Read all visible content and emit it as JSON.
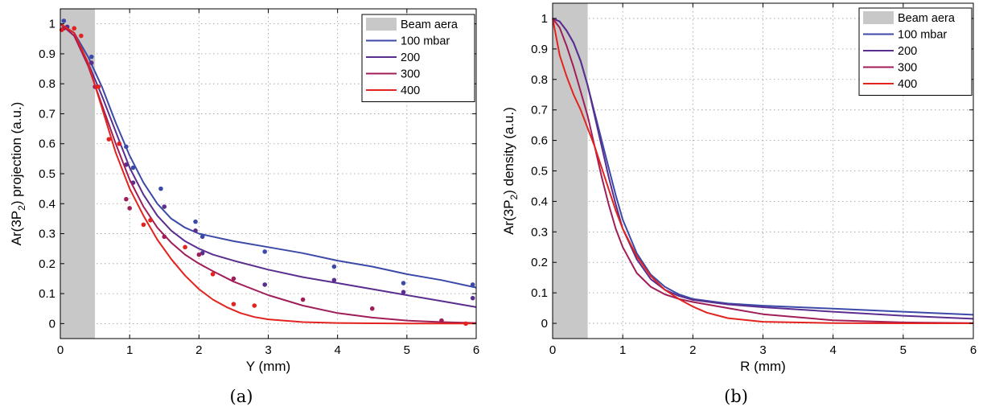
{
  "chart_data": [
    {
      "type": "line",
      "panel": "(a)",
      "xlabel": "Y (mm)",
      "ylabel_parts": {
        "pre": "Ar(3P",
        "sub": "2",
        "post": ") projection (a.u.)"
      },
      "xlim": [
        0,
        6
      ],
      "ylim": [
        -0.05,
        1.05
      ],
      "xticks": [
        0,
        1,
        2,
        3,
        4,
        5,
        6
      ],
      "yticks": [
        0,
        0.1,
        0.2,
        0.3,
        0.4,
        0.5,
        0.6,
        0.7,
        0.8,
        0.9,
        1
      ],
      "grid": true,
      "legend_position": "top-right",
      "beam_area": {
        "label": "Beam aera",
        "x_range": [
          0,
          0.5
        ],
        "color": "#c8c8c8"
      },
      "series": [
        {
          "name": "100 mbar",
          "color": "#3b4aa8",
          "x": [
            0,
            0.2,
            0.4,
            0.6,
            0.8,
            1.0,
            1.2,
            1.4,
            1.6,
            1.8,
            2.0,
            2.2,
            2.5,
            3.0,
            3.5,
            4.0,
            4.5,
            5.0,
            5.5,
            6.0
          ],
          "y": [
            1.0,
            0.97,
            0.89,
            0.79,
            0.67,
            0.56,
            0.47,
            0.4,
            0.35,
            0.32,
            0.3,
            0.29,
            0.275,
            0.255,
            0.235,
            0.21,
            0.19,
            0.165,
            0.145,
            0.12
          ],
          "points": {
            "x": [
              0.05,
              0.45,
              0.95,
              1.05,
              1.45,
              1.95,
              2.05,
              2.95,
              3.95,
              4.95,
              5.95
            ],
            "y": [
              1.01,
              0.89,
              0.59,
              0.52,
              0.45,
              0.34,
              0.29,
              0.24,
              0.19,
              0.135,
              0.13
            ]
          }
        },
        {
          "name": "200",
          "color": "#5a2e8e",
          "x": [
            0,
            0.2,
            0.4,
            0.6,
            0.8,
            1.0,
            1.2,
            1.4,
            1.6,
            1.8,
            2.0,
            2.2,
            2.5,
            3.0,
            3.5,
            4.0,
            4.5,
            5.0,
            5.5,
            6.0
          ],
          "y": [
            1.0,
            0.96,
            0.87,
            0.76,
            0.64,
            0.52,
            0.43,
            0.36,
            0.31,
            0.275,
            0.25,
            0.23,
            0.21,
            0.18,
            0.155,
            0.135,
            0.115,
            0.095,
            0.075,
            0.055
          ],
          "points": {
            "x": [
              0.1,
              0.45,
              0.95,
              1.05,
              1.5,
              1.95,
              2.05,
              2.95,
              3.95,
              4.95,
              5.95
            ],
            "y": [
              0.99,
              0.87,
              0.53,
              0.47,
              0.39,
              0.31,
              0.235,
              0.13,
              0.145,
              0.105,
              0.085
            ]
          }
        },
        {
          "name": "300",
          "color": "#a01e58",
          "x": [
            0,
            0.2,
            0.4,
            0.6,
            0.8,
            1.0,
            1.2,
            1.4,
            1.6,
            1.8,
            2.0,
            2.2,
            2.5,
            3.0,
            3.5,
            4.0,
            4.5,
            5.0,
            5.5,
            6.0
          ],
          "y": [
            1.0,
            0.96,
            0.86,
            0.73,
            0.6,
            0.48,
            0.39,
            0.32,
            0.27,
            0.23,
            0.2,
            0.175,
            0.14,
            0.095,
            0.06,
            0.035,
            0.02,
            0.01,
            0.005,
            0.002
          ],
          "points": {
            "x": [
              0.05,
              0.5,
              0.95,
              1.0,
              1.5,
              2.0,
              2.5,
              3.5,
              4.5,
              5.5
            ],
            "y": [
              0.985,
              0.79,
              0.415,
              0.385,
              0.29,
              0.23,
              0.15,
              0.08,
              0.05,
              0.01
            ]
          }
        },
        {
          "name": "400",
          "color": "#e2231f",
          "x": [
            0,
            0.2,
            0.4,
            0.6,
            0.8,
            1.0,
            1.2,
            1.4,
            1.6,
            1.8,
            2.0,
            2.2,
            2.4,
            2.6,
            2.8,
            3.0,
            3.5,
            4.0,
            4.5,
            5.0,
            5.5,
            6.0
          ],
          "y": [
            1.0,
            0.97,
            0.87,
            0.72,
            0.57,
            0.45,
            0.36,
            0.28,
            0.215,
            0.16,
            0.115,
            0.08,
            0.055,
            0.035,
            0.022,
            0.014,
            0.005,
            0.002,
            0.001,
            0.0005,
            0.0002,
            0.0001
          ],
          "points": {
            "x": [
              0.02,
              0.2,
              0.3,
              0.55,
              0.7,
              0.85,
              1.2,
              1.3,
              1.8,
              2.2,
              2.5,
              2.8,
              5.85
            ],
            "y": [
              0.98,
              0.985,
              0.96,
              0.79,
              0.615,
              0.6,
              0.33,
              0.345,
              0.255,
              0.165,
              0.065,
              0.06,
              0.0
            ]
          }
        }
      ]
    },
    {
      "type": "line",
      "panel": "(b)",
      "xlabel": "R (mm)",
      "ylabel_parts": {
        "pre": "Ar(3P",
        "sub": "2",
        "post": ") density (a.u.)"
      },
      "xlim": [
        0,
        6
      ],
      "ylim": [
        -0.05,
        1.05
      ],
      "xticks": [
        0,
        1,
        2,
        3,
        4,
        5,
        6
      ],
      "yticks": [
        0,
        0.1,
        0.2,
        0.3,
        0.4,
        0.5,
        0.6,
        0.7,
        0.8,
        0.9,
        1
      ],
      "grid": true,
      "legend_position": "top-right",
      "beam_area": {
        "label": "Beam aera",
        "x_range": [
          0,
          0.5
        ],
        "color": "#c8c8c8"
      },
      "series": [
        {
          "name": "100 mbar",
          "color": "#3b4aa8",
          "x": [
            0,
            0.1,
            0.2,
            0.3,
            0.4,
            0.5,
            0.6,
            0.7,
            0.8,
            0.9,
            1.0,
            1.2,
            1.4,
            1.6,
            1.8,
            2.0,
            2.5,
            3.0,
            4.0,
            5.0,
            6.0
          ],
          "y": [
            1.0,
            0.99,
            0.96,
            0.92,
            0.86,
            0.78,
            0.69,
            0.6,
            0.51,
            0.42,
            0.34,
            0.23,
            0.16,
            0.12,
            0.095,
            0.08,
            0.065,
            0.058,
            0.048,
            0.038,
            0.028
          ]
        },
        {
          "name": "200",
          "color": "#5a2e8e",
          "x": [
            0,
            0.1,
            0.2,
            0.3,
            0.4,
            0.5,
            0.6,
            0.7,
            0.8,
            0.9,
            1.0,
            1.2,
            1.4,
            1.6,
            1.8,
            2.0,
            2.5,
            3.0,
            4.0,
            5.0,
            6.0
          ],
          "y": [
            1.0,
            0.99,
            0.96,
            0.92,
            0.86,
            0.78,
            0.68,
            0.58,
            0.48,
            0.39,
            0.31,
            0.21,
            0.145,
            0.11,
            0.09,
            0.077,
            0.062,
            0.053,
            0.038,
            0.025,
            0.015
          ]
        },
        {
          "name": "300",
          "color": "#a01e58",
          "x": [
            0,
            0.1,
            0.2,
            0.3,
            0.4,
            0.5,
            0.6,
            0.7,
            0.8,
            0.9,
            1.0,
            1.2,
            1.4,
            1.6,
            1.8,
            2.0,
            2.5,
            3.0,
            4.0,
            5.0,
            6.0
          ],
          "y": [
            1.0,
            0.97,
            0.91,
            0.84,
            0.76,
            0.68,
            0.58,
            0.48,
            0.39,
            0.31,
            0.25,
            0.165,
            0.12,
            0.095,
            0.08,
            0.07,
            0.05,
            0.03,
            0.01,
            0.003,
            0.001
          ]
        },
        {
          "name": "400",
          "color": "#e2231f",
          "x": [
            0,
            0.05,
            0.1,
            0.2,
            0.3,
            0.4,
            0.5,
            0.6,
            0.7,
            0.8,
            0.9,
            1.0,
            1.2,
            1.4,
            1.6,
            1.8,
            2.0,
            2.2,
            2.5,
            3.0,
            4.0,
            5.0,
            6.0
          ],
          "y": [
            1.0,
            0.94,
            0.88,
            0.81,
            0.75,
            0.7,
            0.64,
            0.58,
            0.51,
            0.44,
            0.37,
            0.31,
            0.22,
            0.155,
            0.11,
            0.08,
            0.055,
            0.035,
            0.017,
            0.005,
            0.001,
            0.0002,
            0.0001
          ]
        }
      ]
    }
  ]
}
